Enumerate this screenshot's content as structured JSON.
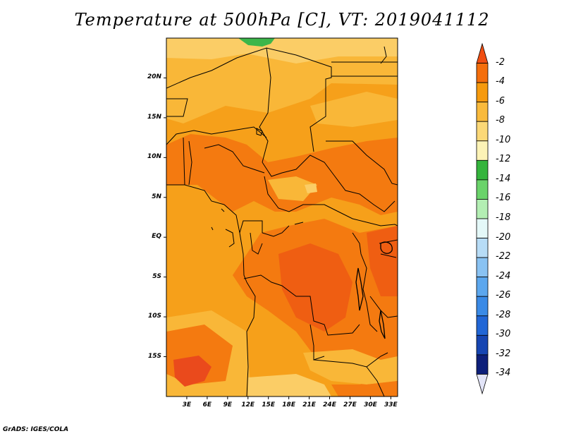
{
  "title": "Temperature at 500hPa [C], VT: 2019041112",
  "credit": "GrADS: IGES/COLA",
  "map": {
    "lat_labels": [
      "20N",
      "15N",
      "10N",
      "5N",
      "EQ",
      "5S",
      "10S",
      "15S"
    ],
    "lon_labels": [
      "3E",
      "6E",
      "9E",
      "12E",
      "15E",
      "18E",
      "21E",
      "24E",
      "27E",
      "30E",
      "33E"
    ],
    "lat_values": [
      20,
      15,
      10,
      5,
      0,
      -5,
      -10,
      -15
    ],
    "lon_values": [
      3,
      6,
      9,
      12,
      15,
      18,
      21,
      24,
      27,
      30,
      33
    ],
    "extent": {
      "lon_min": 0,
      "lon_max": 34,
      "lat_min": -20,
      "lat_max": 25
    }
  },
  "colorbar": {
    "labels": [
      "-2",
      "-4",
      "-6",
      "-8",
      "-10",
      "-12",
      "-14",
      "-16",
      "-18",
      "-20",
      "-22",
      "-24",
      "-26",
      "-28",
      "-30",
      "-32",
      "-34"
    ],
    "colors": [
      "#f04e12",
      "#f46e0c",
      "#f69a0e",
      "#f9ba3c",
      "#fbd877",
      "#fdf3b6",
      "#34b43c",
      "#6ad36a",
      "#b3eeb3",
      "#e4f8f8",
      "#b7dcf6",
      "#89c2f2",
      "#5ca7ee",
      "#3a8ae6",
      "#2166d6",
      "#1645b2",
      "#0d1f7a",
      "#e2e4f8"
    ]
  },
  "colors": {
    "field_base": "#f6a01a",
    "field_light": "#f9b738",
    "field_lighter": "#fbcd66",
    "field_dark": "#f47a10",
    "field_darker": "#ef5e12",
    "field_red": "#ea4a1c",
    "field_green": "#3cb64a"
  }
}
